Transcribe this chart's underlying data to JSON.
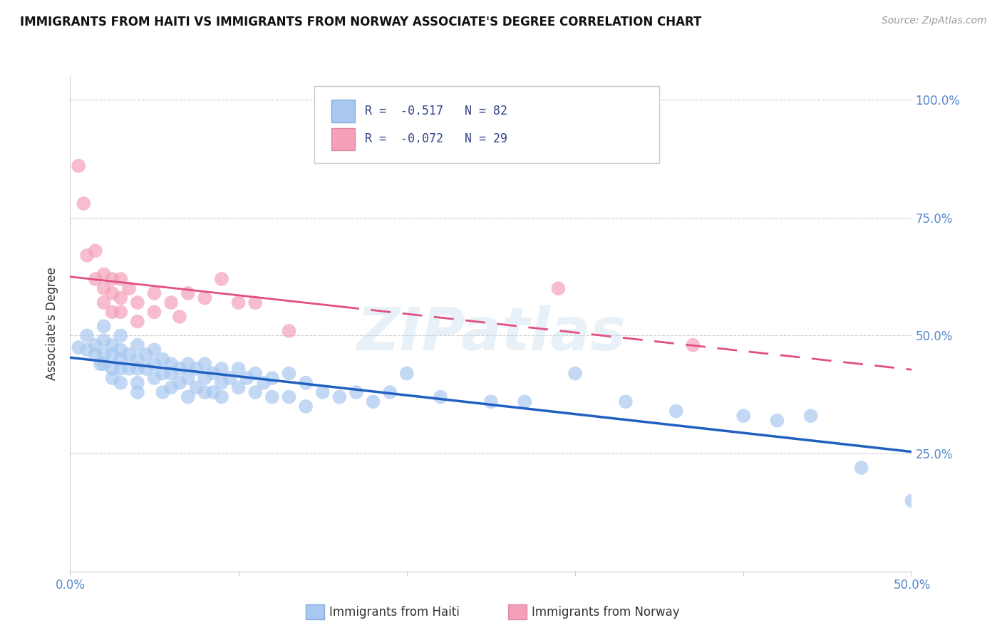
{
  "title": "IMMIGRANTS FROM HAITI VS IMMIGRANTS FROM NORWAY ASSOCIATE'S DEGREE CORRELATION CHART",
  "source": "Source: ZipAtlas.com",
  "ylabel": "Associate's Degree",
  "xlim": [
    0.0,
    0.5
  ],
  "ylim": [
    0.0,
    1.05
  ],
  "haiti_color": "#A8C8F0",
  "norway_color": "#F4A0B8",
  "haiti_R": -0.517,
  "haiti_N": 82,
  "norway_R": -0.072,
  "norway_N": 29,
  "haiti_line_color": "#2060C0",
  "norway_line_color": "#E05080",
  "watermark": "ZIPatlas",
  "legend_label_haiti": "Immigrants from Haiti",
  "legend_label_norway": "Immigrants from Norway",
  "haiti_x": [
    0.005,
    0.01,
    0.01,
    0.015,
    0.015,
    0.018,
    0.02,
    0.02,
    0.02,
    0.02,
    0.025,
    0.025,
    0.025,
    0.025,
    0.03,
    0.03,
    0.03,
    0.03,
    0.03,
    0.035,
    0.035,
    0.04,
    0.04,
    0.04,
    0.04,
    0.04,
    0.045,
    0.045,
    0.05,
    0.05,
    0.05,
    0.055,
    0.055,
    0.055,
    0.06,
    0.06,
    0.06,
    0.065,
    0.065,
    0.07,
    0.07,
    0.07,
    0.075,
    0.075,
    0.08,
    0.08,
    0.08,
    0.085,
    0.085,
    0.09,
    0.09,
    0.09,
    0.095,
    0.1,
    0.1,
    0.105,
    0.11,
    0.11,
    0.115,
    0.12,
    0.12,
    0.13,
    0.13,
    0.14,
    0.14,
    0.15,
    0.16,
    0.17,
    0.18,
    0.19,
    0.2,
    0.22,
    0.25,
    0.27,
    0.3,
    0.33,
    0.36,
    0.4,
    0.42,
    0.44,
    0.47,
    0.5
  ],
  "haiti_y": [
    0.475,
    0.5,
    0.47,
    0.48,
    0.46,
    0.44,
    0.52,
    0.49,
    0.46,
    0.44,
    0.48,
    0.46,
    0.43,
    0.41,
    0.5,
    0.47,
    0.45,
    0.43,
    0.4,
    0.46,
    0.43,
    0.48,
    0.45,
    0.43,
    0.4,
    0.38,
    0.46,
    0.43,
    0.47,
    0.44,
    0.41,
    0.45,
    0.42,
    0.38,
    0.44,
    0.42,
    0.39,
    0.43,
    0.4,
    0.44,
    0.41,
    0.37,
    0.43,
    0.39,
    0.44,
    0.41,
    0.38,
    0.42,
    0.38,
    0.43,
    0.4,
    0.37,
    0.41,
    0.43,
    0.39,
    0.41,
    0.42,
    0.38,
    0.4,
    0.41,
    0.37,
    0.42,
    0.37,
    0.4,
    0.35,
    0.38,
    0.37,
    0.38,
    0.36,
    0.38,
    0.42,
    0.37,
    0.36,
    0.36,
    0.42,
    0.36,
    0.34,
    0.33,
    0.32,
    0.33,
    0.22,
    0.15
  ],
  "norway_x": [
    0.005,
    0.008,
    0.01,
    0.015,
    0.015,
    0.02,
    0.02,
    0.02,
    0.025,
    0.025,
    0.025,
    0.03,
    0.03,
    0.03,
    0.035,
    0.04,
    0.04,
    0.05,
    0.05,
    0.06,
    0.065,
    0.07,
    0.08,
    0.09,
    0.1,
    0.11,
    0.13,
    0.29,
    0.37
  ],
  "norway_y": [
    0.86,
    0.78,
    0.67,
    0.68,
    0.62,
    0.63,
    0.6,
    0.57,
    0.62,
    0.59,
    0.55,
    0.62,
    0.58,
    0.55,
    0.6,
    0.57,
    0.53,
    0.59,
    0.55,
    0.57,
    0.54,
    0.59,
    0.58,
    0.62,
    0.57,
    0.57,
    0.51,
    0.6,
    0.48
  ]
}
